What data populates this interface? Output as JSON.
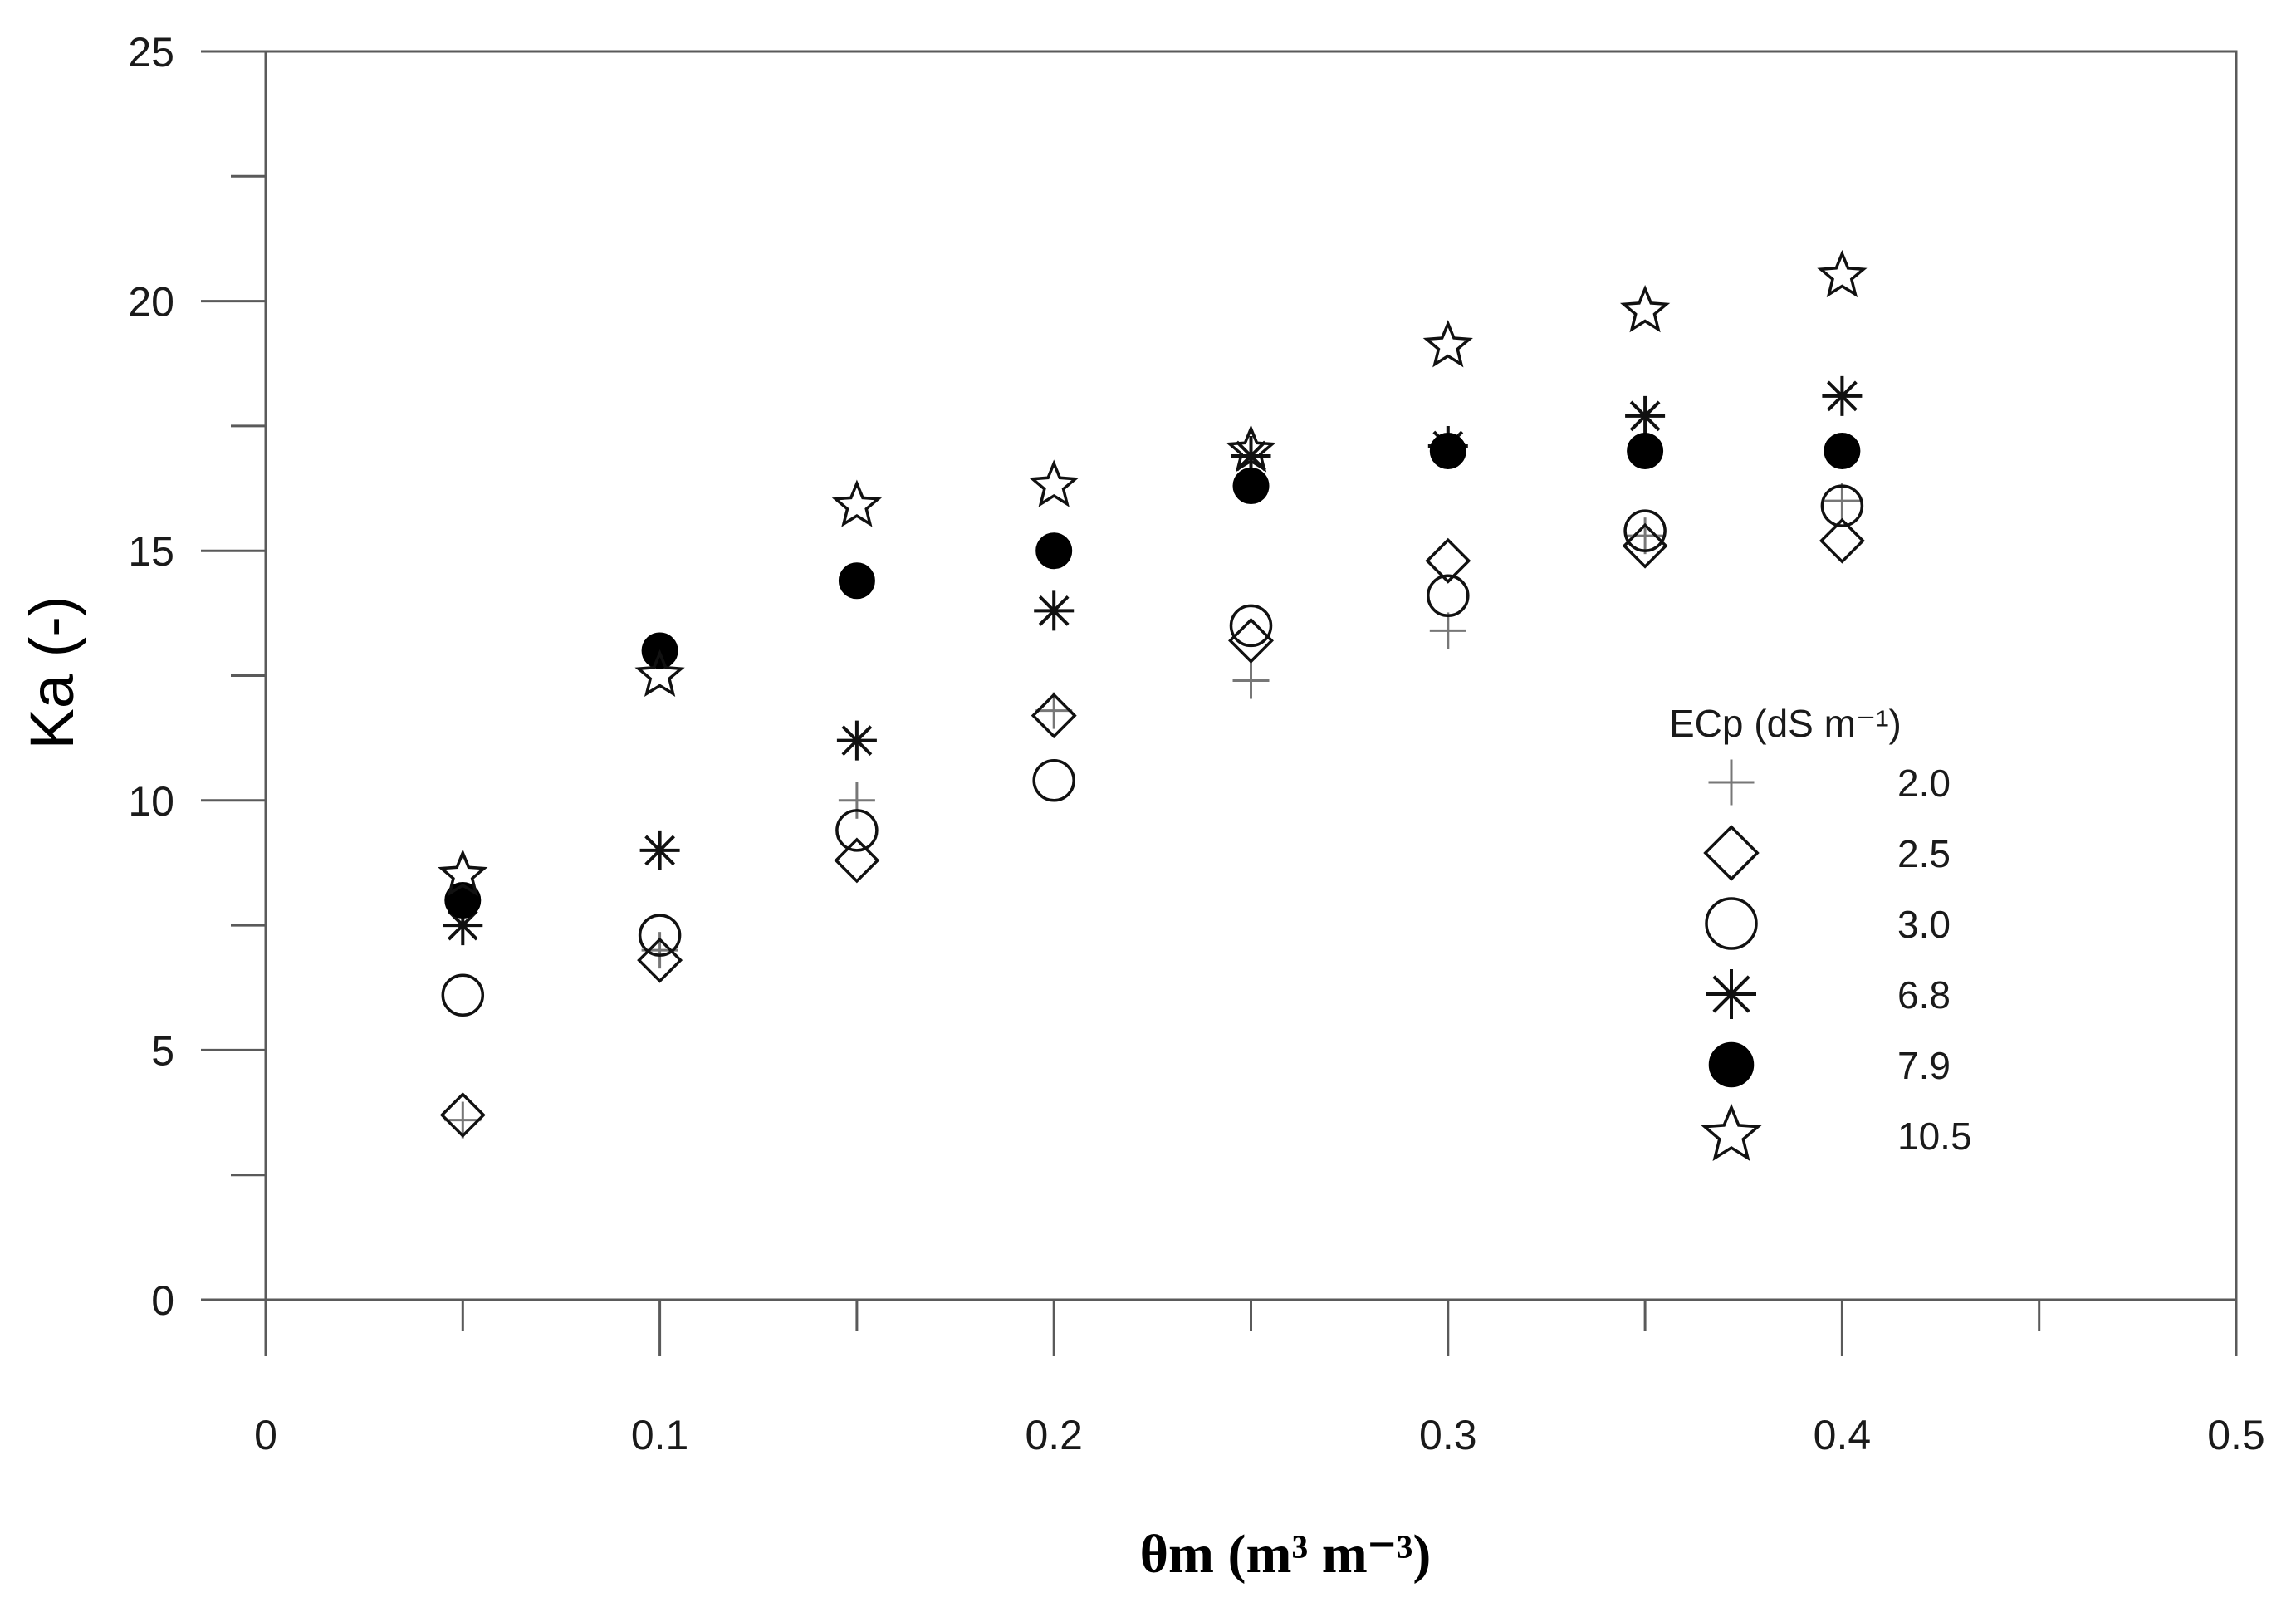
{
  "chart_data": {
    "type": "scatter",
    "xlabel": "θm (m³ m⁻³)",
    "ylabel": "Ka (-)",
    "xlim": [
      0,
      0.5
    ],
    "ylim": [
      0,
      25
    ],
    "xticks": [
      0,
      0.1,
      0.2,
      0.3,
      0.4,
      0.5
    ],
    "xtick_labels": [
      "0",
      "0.1",
      "0.2",
      "0.3",
      "0.4",
      "0.5"
    ],
    "yticks": [
      0,
      5,
      10,
      15,
      20,
      25
    ],
    "ytick_labels": [
      "0",
      "5",
      "10",
      "15",
      "20",
      "25"
    ],
    "grid": false,
    "legend": {
      "title": "ECp (dS m⁻¹)",
      "placement": "right-middle"
    },
    "series": [
      {
        "name": "2.0",
        "marker": "plus",
        "x": [
          0.05,
          0.1,
          0.15,
          0.2,
          0.25,
          0.3,
          0.35,
          0.4
        ],
        "y": [
          3.6,
          7.0,
          10.0,
          11.8,
          12.4,
          13.4,
          15.3,
          16.0
        ]
      },
      {
        "name": "2.5",
        "marker": "diamond",
        "x": [
          0.05,
          0.1,
          0.15,
          0.2,
          0.25,
          0.3,
          0.35,
          0.4
        ],
        "y": [
          3.7,
          6.8,
          8.8,
          11.7,
          13.2,
          14.8,
          15.1,
          15.2
        ]
      },
      {
        "name": "3.0",
        "marker": "circle-open",
        "x": [
          0.05,
          0.1,
          0.15,
          0.2,
          0.25,
          0.3,
          0.35,
          0.4
        ],
        "y": [
          6.1,
          7.3,
          9.4,
          10.4,
          13.5,
          14.1,
          15.4,
          15.9
        ]
      },
      {
        "name": "6.8",
        "marker": "asterisk",
        "x": [
          0.05,
          0.1,
          0.15,
          0.2,
          0.25,
          0.3,
          0.35,
          0.4
        ],
        "y": [
          7.5,
          9.0,
          11.2,
          13.8,
          16.9,
          17.1,
          17.7,
          18.1
        ]
      },
      {
        "name": "7.9",
        "marker": "circle-filled",
        "x": [
          0.05,
          0.1,
          0.15,
          0.2,
          0.25,
          0.3,
          0.35,
          0.4
        ],
        "y": [
          8.0,
          13.0,
          14.4,
          15.0,
          16.3,
          17.0,
          17.0,
          17.0
        ]
      },
      {
        "name": "10.5",
        "marker": "star-open",
        "x": [
          0.05,
          0.1,
          0.15,
          0.2,
          0.25,
          0.3,
          0.35,
          0.4
        ],
        "y": [
          8.5,
          12.5,
          15.9,
          16.3,
          17.0,
          19.1,
          19.8,
          20.5
        ]
      }
    ]
  }
}
